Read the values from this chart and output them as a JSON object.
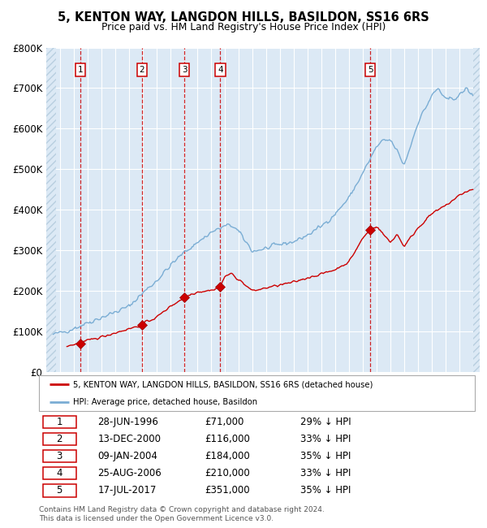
{
  "title1": "5, KENTON WAY, LANGDON HILLS, BASILDON, SS16 6RS",
  "title2": "Price paid vs. HM Land Registry's House Price Index (HPI)",
  "ylim": [
    0,
    800000
  ],
  "yticks": [
    0,
    100000,
    200000,
    300000,
    400000,
    500000,
    600000,
    700000,
    800000
  ],
  "ytick_labels": [
    "£0",
    "£100K",
    "£200K",
    "£300K",
    "£400K",
    "£500K",
    "£600K",
    "£700K",
    "£800K"
  ],
  "xlim_start": 1994.0,
  "xlim_end": 2025.5,
  "bg_color": "#dce9f5",
  "hatch_color": "#b8cfe0",
  "grid_color": "#ffffff",
  "sale_color": "#cc0000",
  "hpi_color": "#7aadd4",
  "purchases": [
    {
      "num": 1,
      "date_dec": 1996.49,
      "price": 71000,
      "label": "28-JUN-1996",
      "amount": "£71,000",
      "pct": "29% ↓ HPI"
    },
    {
      "num": 2,
      "date_dec": 2000.95,
      "price": 116000,
      "label": "13-DEC-2000",
      "amount": "£116,000",
      "pct": "33% ↓ HPI"
    },
    {
      "num": 3,
      "date_dec": 2004.03,
      "price": 184000,
      "label": "09-JAN-2004",
      "amount": "£184,000",
      "pct": "35% ↓ HPI"
    },
    {
      "num": 4,
      "date_dec": 2006.65,
      "price": 210000,
      "label": "25-AUG-2006",
      "amount": "£210,000",
      "pct": "33% ↓ HPI"
    },
    {
      "num": 5,
      "date_dec": 2017.54,
      "price": 351000,
      "label": "17-JUL-2017",
      "amount": "£351,000",
      "pct": "35% ↓ HPI"
    }
  ],
  "legend_sale": "5, KENTON WAY, LANGDON HILLS, BASILDON, SS16 6RS (detached house)",
  "legend_hpi": "HPI: Average price, detached house, Basildon",
  "footer1": "Contains HM Land Registry data © Crown copyright and database right 2024.",
  "footer2": "This data is licensed under the Open Government Licence v3.0.",
  "hpi_anchors_x": [
    1994.5,
    1995,
    1996,
    1997,
    1998,
    1999,
    2000,
    2001,
    2002,
    2003,
    2004,
    2005,
    2006,
    2007,
    2007.5,
    2008,
    2009,
    2010,
    2011,
    2012,
    2013,
    2014,
    2015,
    2016,
    2017,
    2018,
    2018.5,
    2019,
    2019.5,
    2020,
    2020.5,
    2021,
    2022,
    2022.5,
    2023,
    2024,
    2024.5,
    2025
  ],
  "hpi_anchors_y": [
    93000,
    97000,
    108000,
    122000,
    135000,
    148000,
    162000,
    195000,
    225000,
    262000,
    295000,
    320000,
    345000,
    360000,
    362000,
    345000,
    298000,
    305000,
    315000,
    322000,
    338000,
    360000,
    390000,
    430000,
    490000,
    555000,
    570000,
    572000,
    545000,
    510000,
    560000,
    615000,
    680000,
    700000,
    670000,
    680000,
    700000,
    680000
  ],
  "sale_anchors_x": [
    1995.5,
    1996.0,
    1996.49,
    1997,
    1998,
    1999,
    2000,
    2000.95,
    2001,
    2002,
    2003,
    2004.03,
    2004.5,
    2005,
    2006.0,
    2006.65,
    2007,
    2007.5,
    2008,
    2009,
    2010,
    2011,
    2012,
    2013,
    2014,
    2015,
    2016,
    2017.0,
    2017.54,
    2018,
    2018.5,
    2019,
    2019.5,
    2020,
    2021,
    2022,
    2023,
    2024,
    2024.5,
    2025
  ],
  "sale_anchors_y": [
    65000,
    68000,
    71000,
    78000,
    87000,
    97000,
    107000,
    116000,
    120000,
    135000,
    162000,
    184000,
    192000,
    198000,
    202000,
    210000,
    238000,
    242000,
    228000,
    200000,
    208000,
    215000,
    222000,
    233000,
    242000,
    253000,
    272000,
    330000,
    351000,
    360000,
    340000,
    320000,
    340000,
    310000,
    355000,
    390000,
    410000,
    435000,
    445000,
    450000
  ]
}
